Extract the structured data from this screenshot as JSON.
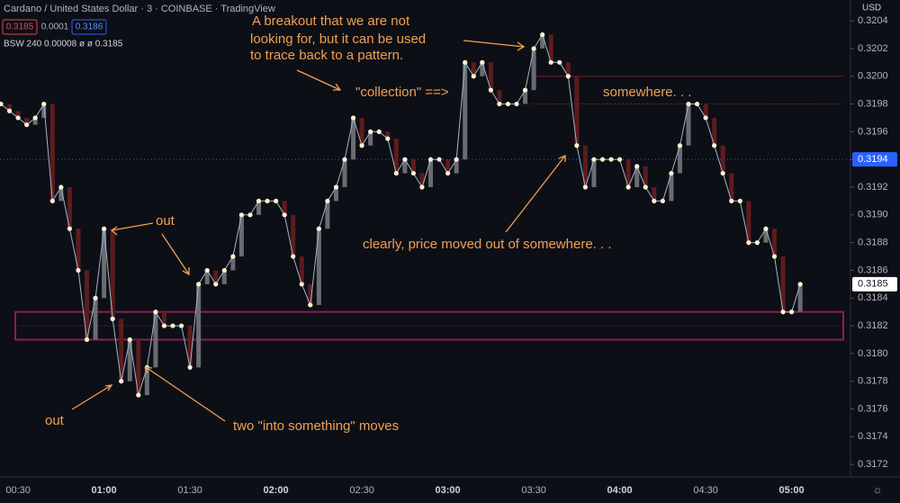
{
  "chart_data": {
    "type": "line",
    "title": "Cardano / United States Dollar · 3 · COINBASE · TradingView",
    "header_quotes": [
      "0.3185",
      "0.0001",
      "0.3186"
    ],
    "indicator": "BSW 240 0.00008 ø ø 0.3185",
    "currency": "USD",
    "categories": [
      null,
      null,
      "00:30",
      null,
      null,
      null,
      null,
      null,
      null,
      null,
      null,
      null,
      "01:00",
      null,
      null,
      null,
      null,
      null,
      null,
      null,
      null,
      null,
      "01:30",
      null,
      null,
      null,
      null,
      null,
      null,
      null,
      null,
      null,
      "02:00",
      null,
      null,
      null,
      null,
      null,
      null,
      null,
      null,
      null,
      "02:30",
      null,
      null,
      null,
      null,
      null,
      null,
      null,
      null,
      null,
      "03:00",
      null,
      null,
      null,
      null,
      null,
      null,
      null,
      null,
      null,
      "03:30",
      null,
      null,
      null,
      null,
      null,
      null,
      null,
      null,
      null,
      "04:00",
      null,
      null,
      null,
      null,
      null,
      null,
      null,
      null,
      null,
      "04:30",
      null,
      null,
      null,
      null,
      null,
      null,
      null,
      null,
      null,
      "05:00",
      null
    ],
    "values": [
      0.3198,
      0.31975,
      0.3197,
      0.31965,
      0.3197,
      0.3198,
      0.3191,
      0.3192,
      0.3189,
      0.3186,
      0.3181,
      0.3184,
      0.3189,
      0.31825,
      0.3178,
      0.3181,
      0.3177,
      0.3179,
      0.3183,
      0.3182,
      0.3182,
      0.3182,
      0.3179,
      0.3185,
      0.3186,
      0.3185,
      0.3186,
      0.3187,
      0.319,
      0.319,
      0.3191,
      0.3191,
      0.3191,
      0.319,
      0.3187,
      0.3185,
      0.31835,
      0.3189,
      0.3191,
      0.3192,
      0.3194,
      0.3197,
      0.3195,
      0.3196,
      0.3196,
      0.31955,
      0.3193,
      0.3194,
      0.3193,
      0.3192,
      0.3194,
      0.3194,
      0.3193,
      0.3194,
      0.3201,
      0.32,
      0.3201,
      0.3199,
      0.3198,
      0.3198,
      0.3198,
      0.3199,
      0.3202,
      0.3203,
      0.3201,
      0.3201,
      0.32,
      0.3195,
      0.3192,
      0.3194,
      0.3194,
      0.3194,
      0.3194,
      0.3192,
      0.31935,
      0.3192,
      0.3191,
      0.3191,
      0.3193,
      0.3195,
      0.3198,
      0.3198,
      0.3197,
      0.3195,
      0.3193,
      0.3191,
      0.3191,
      0.3188,
      0.3188,
      0.3189,
      0.3187,
      0.3183,
      0.3183,
      0.3185
    ],
    "color": "#9fb7c9",
    "marker_color": "#fff1d0",
    "up_color": "#6a6c72",
    "down_color": "#5e1b1f",
    "ylim": [
      0.31711,
      0.32055
    ],
    "yticks": [
      0.3172,
      0.3174,
      0.3176,
      0.3178,
      {
        "value": 0.318,
        "label": "0.3180"
      },
      0.3182,
      0.3184,
      0.3186,
      0.3188,
      {
        "value": 0.319,
        "label": "0.3190"
      },
      0.3192,
      0.3194,
      0.3196,
      0.3198,
      {
        "value": 0.32,
        "label": "0.3200"
      },
      0.3202,
      0.3204
    ],
    "price_tags": [
      {
        "value": 0.3194,
        "label": "0.3194",
        "color": "#2962ff"
      },
      {
        "value": 0.3185,
        "label": "0.3185",
        "color": "#ffffff"
      }
    ],
    "levels": [
      {
        "value": 0.32,
        "color": "#7a1c2c"
      },
      {
        "value": 0.3198,
        "color": "#9a3030"
      }
    ],
    "zone": [
      0.3181,
      0.3183,
      0.3182
    ],
    "zone_color": "#8a1f52",
    "annotations": {
      "breakout": [
        "A breakout that we are not",
        "looking for, but it can be used",
        "to trace back to a pattern."
      ],
      "collection": "\"collection\" ==>",
      "somewhere": "somewhere. . .",
      "clearly": "clearly, price moved out of somewhere. . .",
      "out_top": "out",
      "out_bottom": "out",
      "into": "two \"into something\" moves"
    }
  }
}
